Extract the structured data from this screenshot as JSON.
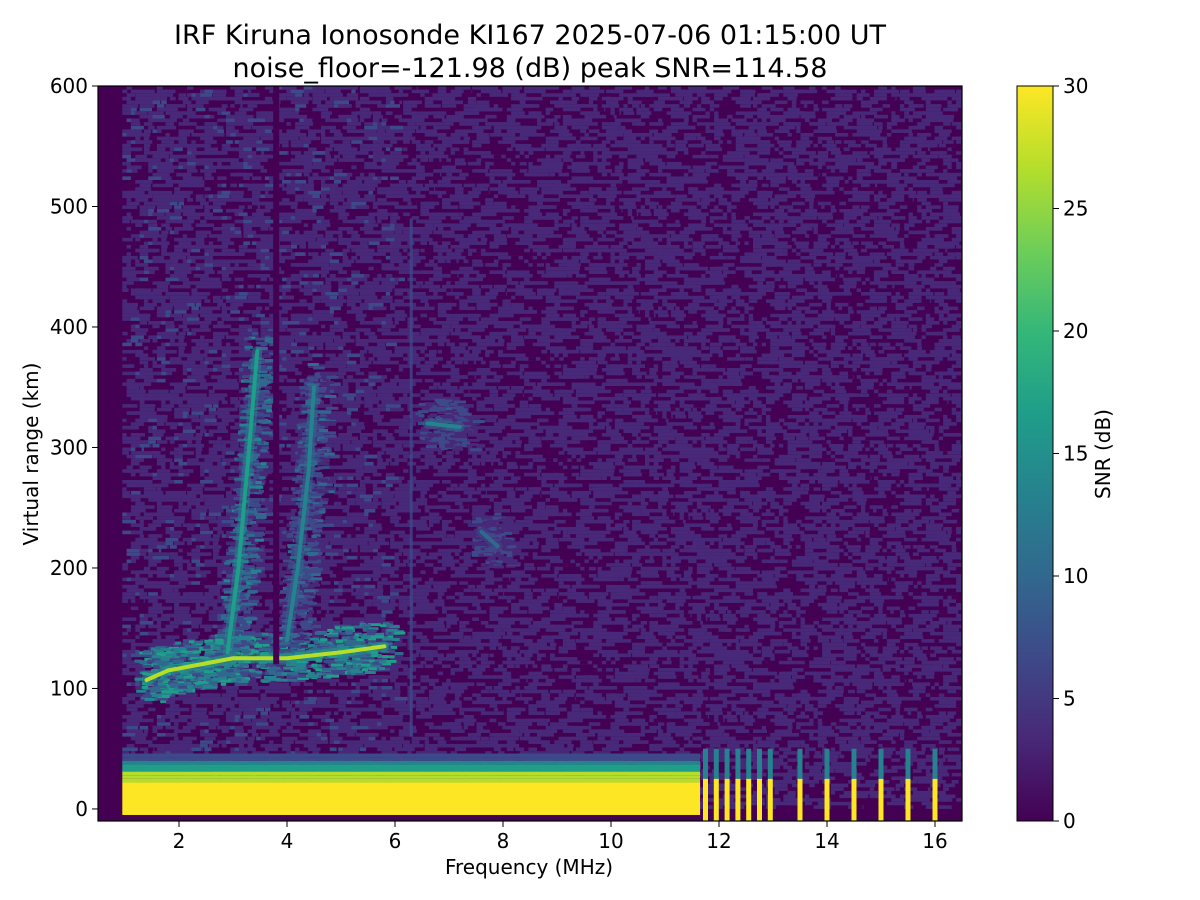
{
  "chart_data": {
    "type": "heatmap",
    "title": "IRF Kiruna Ionosonde KI167 2025-07-06 01:15:00  UT",
    "subtitle": "noise_floor=-121.98 (dB) peak SNR=114.58",
    "xlabel": "Frequency (MHz)",
    "ylabel": "Virtual range (km)",
    "xlim": [
      0.5,
      16.5
    ],
    "ylim": [
      -10,
      600
    ],
    "data_x_range": [
      0.95,
      16.4
    ],
    "x_ticks": [
      "2",
      "4",
      "6",
      "8",
      "10",
      "12",
      "14",
      "16"
    ],
    "y_ticks": [
      "0",
      "100",
      "200",
      "300",
      "400",
      "500",
      "600"
    ],
    "colorbar": {
      "label": "SNR (dB)",
      "range": [
        0,
        30
      ],
      "ticks": [
        "0",
        "5",
        "10",
        "15",
        "20",
        "25",
        "30"
      ],
      "colormap": "viridis"
    },
    "traces": [
      {
        "name": "ground clutter",
        "freq_range": [
          0.95,
          11.65
        ],
        "range_km": [
          0,
          45
        ],
        "snr": 30
      },
      {
        "name": "E layer",
        "points": [
          [
            1.4,
            107
          ],
          [
            1.8,
            115
          ],
          [
            2.4,
            120
          ],
          [
            3.0,
            125
          ],
          [
            4.0,
            125
          ],
          [
            5.0,
            130
          ],
          [
            5.8,
            135
          ]
        ],
        "snr": 25
      },
      {
        "name": "F trace A",
        "points": [
          [
            2.9,
            130
          ],
          [
            3.1,
            200
          ],
          [
            3.3,
            300
          ],
          [
            3.45,
            380
          ]
        ],
        "snr": 18
      },
      {
        "name": "F trace B",
        "points": [
          [
            4.0,
            140
          ],
          [
            4.2,
            200
          ],
          [
            4.4,
            280
          ],
          [
            4.5,
            350
          ]
        ],
        "snr": 14
      },
      {
        "name": "echo 7 MHz",
        "points": [
          [
            6.6,
            320
          ],
          [
            7.2,
            317
          ]
        ],
        "snr": 12
      },
      {
        "name": "echo 8 MHz",
        "points": [
          [
            7.6,
            230
          ],
          [
            7.9,
            218
          ]
        ],
        "snr": 10
      }
    ],
    "interference_bars_MHz": [
      11.75,
      11.95,
      12.15,
      12.35,
      12.55,
      12.75,
      12.95,
      13.5,
      14.0,
      14.5,
      15.0,
      15.5,
      16.0
    ],
    "grid": false
  },
  "colors": {
    "viridis": [
      "#440154",
      "#482878",
      "#3e4989",
      "#31688e",
      "#26828e",
      "#1f9e89",
      "#35b779",
      "#6ece58",
      "#b5de2b",
      "#fde725"
    ]
  }
}
